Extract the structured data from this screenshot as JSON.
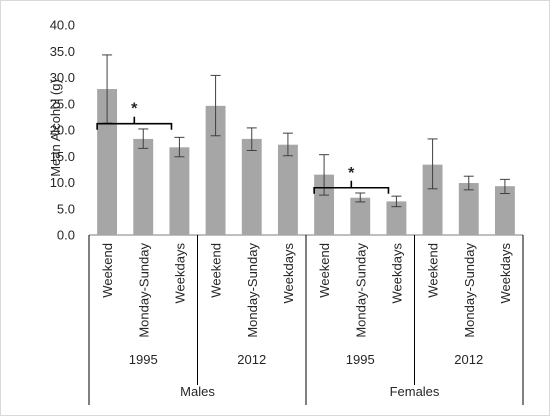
{
  "chart_data": {
    "type": "bar",
    "ylabel": "Mean Alcohol (g)",
    "ylim": [
      0,
      40
    ],
    "yticks": [
      "0.0",
      "5.0",
      "10.0",
      "15.0",
      "20.0",
      "25.0",
      "30.0",
      "35.0",
      "40.0"
    ],
    "grid": false,
    "legend": "none",
    "bar_color": "#a6a6a6",
    "error_color": "#404040",
    "categories": [
      "Weekend",
      "Monday-Sunday",
      "Weekdays",
      "Weekend",
      "Monday-Sunday",
      "Weekdays",
      "Weekend",
      "Monday-Sunday",
      "Weekdays",
      "Weekend",
      "Monday-Sunday",
      "Weekdays"
    ],
    "values": [
      27.8,
      18.3,
      16.7,
      24.6,
      18.3,
      17.2,
      11.5,
      7.1,
      6.4,
      13.4,
      9.9,
      9.3
    ],
    "errors": [
      [
        21.3,
        34.3
      ],
      [
        16.5,
        20.2
      ],
      [
        14.9,
        18.6
      ],
      [
        18.9,
        30.4
      ],
      [
        16.1,
        20.4
      ],
      [
        15.1,
        19.4
      ],
      [
        7.6,
        15.3
      ],
      [
        6.3,
        8.0
      ],
      [
        5.4,
        7.4
      ],
      [
        8.8,
        18.3
      ],
      [
        8.6,
        11.2
      ],
      [
        7.9,
        10.6
      ]
    ],
    "year_groups": [
      {
        "label": "1995",
        "bars": [
          0,
          1,
          2
        ]
      },
      {
        "label": "2012",
        "bars": [
          3,
          4,
          5
        ]
      },
      {
        "label": "1995",
        "bars": [
          6,
          7,
          8
        ]
      },
      {
        "label": "2012",
        "bars": [
          9,
          10,
          11
        ]
      }
    ],
    "sex_groups": [
      {
        "label": "Males",
        "bars": [
          0,
          5
        ]
      },
      {
        "label": "Females",
        "bars": [
          6,
          11
        ]
      }
    ],
    "annotations": [
      {
        "text": "*",
        "from": 0,
        "to": 2,
        "level": 21.2
      },
      {
        "text": "*",
        "from": 6,
        "to": 8,
        "level": 9.0
      }
    ]
  }
}
